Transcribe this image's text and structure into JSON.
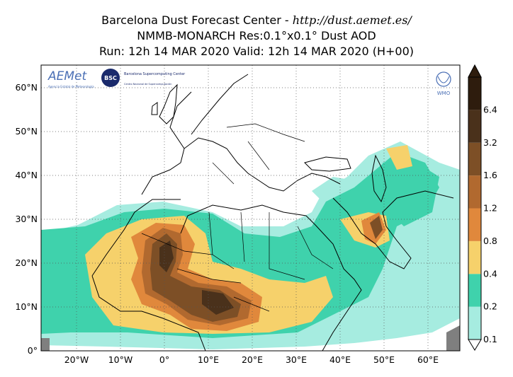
{
  "header": {
    "line1_prefix": "Barcelona Dust Forecast Center - ",
    "line1_url": "http://dust.aemet.es/",
    "line2": "NMMB-MONARCH   Res:0.1°x0.1°   Dust AOD",
    "line3": "Run: 12h 14 MAR 2020   Valid: 12h 14 MAR 2020 (H+00)"
  },
  "map": {
    "background": "#ffffff",
    "x_ticks": [
      "20°W",
      "10°W",
      "0°",
      "10°E",
      "20°E",
      "30°E",
      "40°E",
      "50°E",
      "60°E"
    ],
    "y_ticks": [
      "0°",
      "10°N",
      "20°N",
      "30°N",
      "40°N",
      "50°N",
      "60°N"
    ]
  },
  "logos": {
    "aemet": "AEMet",
    "aemet_sub": "Agencia Estatal de Meteorología",
    "bsc": "BSC",
    "bsc_name": "Barcelona Supercomputing Center",
    "bsc_sub": "Centro Nacional de Supercomputación",
    "wmo": "WMO"
  },
  "colorbar": {
    "labels": [
      "0.1",
      "0.2",
      "0.4",
      "0.8",
      "1.2",
      "1.6",
      "3.2",
      "6.4"
    ],
    "colors": [
      "#a6ece0",
      "#3fd2ac",
      "#f6d16b",
      "#e0883c",
      "#b1692f",
      "#7d4f26",
      "#4a311b",
      "#2e1c0d"
    ]
  }
}
